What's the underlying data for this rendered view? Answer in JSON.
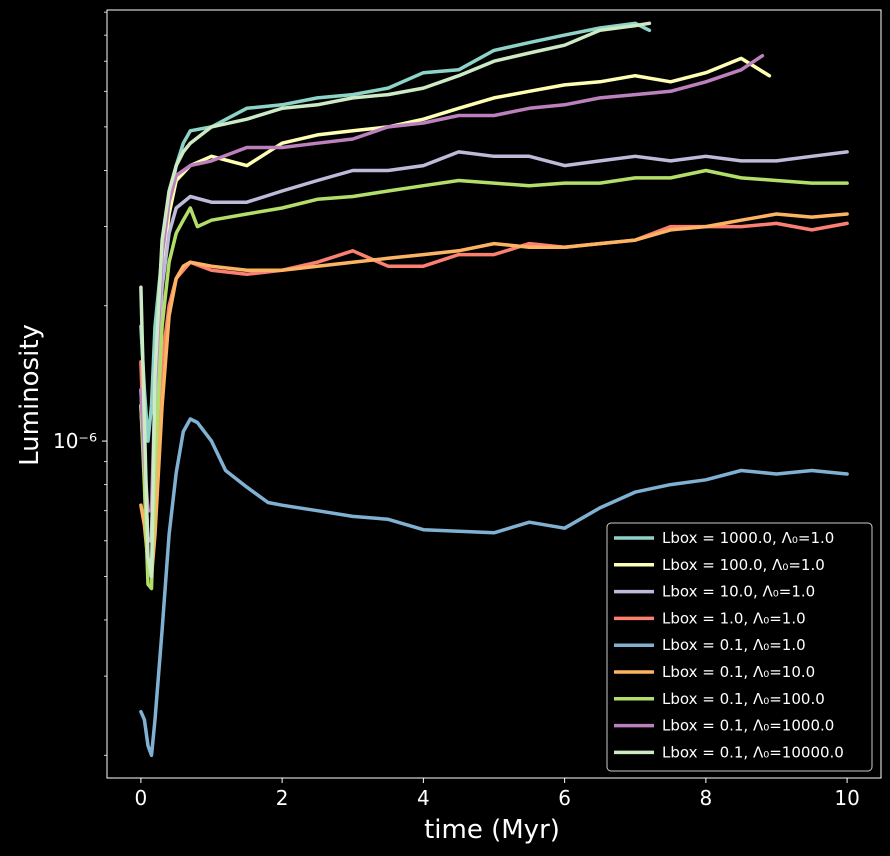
{
  "chart_data": {
    "type": "line",
    "xlabel": "time (Myr)",
    "ylabel": "Luminosity",
    "xlim": [
      -0.48,
      10.48
    ],
    "ylim": [
      1.78e-07,
      9.1e-06
    ],
    "yscale": "log",
    "xticks": [
      0,
      2,
      4,
      6,
      8,
      10
    ],
    "xtick_labels": [
      "0",
      "2",
      "4",
      "6",
      "8",
      "10"
    ],
    "yticks": [
      1e-06
    ],
    "ytick_labels": [
      "10⁻⁶"
    ],
    "grid": false,
    "legend": "lower-right",
    "series": [
      {
        "name": "Lbox = 1000.0, Λ₀=1.0",
        "color": "#8dd3c7",
        "x": [
          0,
          0.05,
          0.1,
          0.15,
          0.2,
          0.3,
          0.4,
          0.5,
          0.6,
          0.7,
          1.0,
          1.5,
          2.0,
          2.5,
          3.0,
          3.5,
          4.0,
          4.5,
          5.0,
          5.5,
          6.0,
          6.5,
          7.0,
          7.2
        ],
        "y": [
          1.8e-06,
          1.3e-06,
          1e-06,
          1.2e-06,
          1.8e-06,
          2.6e-06,
          3.4e-06,
          4.1e-06,
          4.6e-06,
          4.9e-06,
          5e-06,
          5.5e-06,
          5.6e-06,
          5.8e-06,
          5.9e-06,
          6.1e-06,
          6.6e-06,
          6.7e-06,
          7.4e-06,
          7.7e-06,
          8e-06,
          8.3e-06,
          8.5e-06,
          8.2e-06
        ]
      },
      {
        "name": "Lbox = 100.0, Λ₀=1.0",
        "color": "#ffffb3",
        "x": [
          0,
          0.05,
          0.1,
          0.15,
          0.2,
          0.3,
          0.4,
          0.5,
          0.7,
          1.0,
          1.5,
          2.0,
          2.5,
          3.0,
          3.5,
          4.0,
          4.5,
          5.0,
          5.5,
          6.0,
          6.5,
          7.0,
          7.5,
          8.0,
          8.5,
          8.9
        ],
        "y": [
          1.2e-06,
          8.5e-07,
          6e-07,
          6e-07,
          1.2e-06,
          2.4e-06,
          3.2e-06,
          3.8e-06,
          4.1e-06,
          4.3e-06,
          4.1e-06,
          4.6e-06,
          4.8e-06,
          4.9e-06,
          5e-06,
          5.2e-06,
          5.5e-06,
          5.8e-06,
          6e-06,
          6.2e-06,
          6.3e-06,
          6.5e-06,
          6.3e-06,
          6.6e-06,
          7.1e-06,
          6.5e-06
        ]
      },
      {
        "name": "Lbox = 10.0, Λ₀=1.0",
        "color": "#bebada",
        "x": [
          0,
          0.05,
          0.1,
          0.15,
          0.2,
          0.3,
          0.4,
          0.5,
          0.7,
          1.0,
          1.5,
          2.0,
          2.5,
          3.0,
          3.5,
          4.0,
          4.5,
          5.0,
          5.5,
          6.0,
          6.5,
          7.0,
          7.5,
          8.0,
          8.5,
          9.0,
          9.5,
          10.0
        ],
        "y": [
          1.3e-06,
          9e-07,
          6e-07,
          6e-07,
          1.1e-06,
          2.2e-06,
          2.9e-06,
          3.3e-06,
          3.5e-06,
          3.4e-06,
          3.4e-06,
          3.6e-06,
          3.8e-06,
          4e-06,
          4e-06,
          4.1e-06,
          4.4e-06,
          4.3e-06,
          4.3e-06,
          4.1e-06,
          4.2e-06,
          4.3e-06,
          4.2e-06,
          4.3e-06,
          4.2e-06,
          4.2e-06,
          4.3e-06,
          4.4e-06
        ]
      },
      {
        "name": "Lbox = 1.0, Λ₀=1.0",
        "color": "#fb8072",
        "x": [
          0,
          0.05,
          0.1,
          0.15,
          0.2,
          0.3,
          0.4,
          0.5,
          0.6,
          0.7,
          1.0,
          1.5,
          2.0,
          2.5,
          3.0,
          3.5,
          4.0,
          4.5,
          5.0,
          5.5,
          6.0,
          6.5,
          7.0,
          7.5,
          8.0,
          8.5,
          9.0,
          9.5,
          10.0
        ],
        "y": [
          1.5e-06,
          9e-07,
          5.5e-07,
          5e-07,
          8.5e-07,
          1.5e-06,
          2e-06,
          2.3e-06,
          2.4e-06,
          2.5e-06,
          2.4e-06,
          2.35e-06,
          2.4e-06,
          2.5e-06,
          2.65e-06,
          2.45e-06,
          2.45e-06,
          2.6e-06,
          2.6e-06,
          2.75e-06,
          2.7e-06,
          2.75e-06,
          2.8e-06,
          3e-06,
          3e-06,
          3e-06,
          3.05e-06,
          2.95e-06,
          3.05e-06
        ]
      },
      {
        "name": "Lbox = 0.1, Λ₀=1.0",
        "color": "#80b1d3",
        "x": [
          0,
          0.05,
          0.1,
          0.15,
          0.2,
          0.3,
          0.4,
          0.5,
          0.6,
          0.7,
          0.8,
          1.0,
          1.2,
          1.5,
          1.8,
          2.0,
          2.5,
          3.0,
          3.5,
          4.0,
          4.5,
          5.0,
          5.5,
          6.0,
          6.5,
          7.0,
          7.5,
          8.0,
          8.5,
          9.0,
          9.5,
          10.0
        ],
        "y": [
          2.5e-07,
          2.4e-07,
          2.1e-07,
          2e-07,
          2.4e-07,
          3.8e-07,
          6.2e-07,
          8.5e-07,
          1.05e-06,
          1.12e-06,
          1.1e-06,
          1e-06,
          8.6e-07,
          7.9e-07,
          7.3e-07,
          7.2e-07,
          7e-07,
          6.8e-07,
          6.7e-07,
          6.35e-07,
          6.3e-07,
          6.25e-07,
          6.6e-07,
          6.4e-07,
          7.1e-07,
          7.7e-07,
          8e-07,
          8.2e-07,
          8.6e-07,
          8.45e-07,
          8.6e-07,
          8.45e-07
        ]
      },
      {
        "name": "Lbox = 0.1, Λ₀=10.0",
        "color": "#fdb462",
        "x": [
          0,
          0.05,
          0.1,
          0.15,
          0.2,
          0.3,
          0.4,
          0.5,
          0.6,
          0.7,
          1.0,
          1.5,
          2.0,
          2.5,
          3.0,
          3.5,
          4.0,
          4.5,
          5.0,
          5.5,
          6.0,
          6.5,
          7.0,
          7.5,
          8.0,
          8.5,
          9.0,
          9.5,
          10.0
        ],
        "y": [
          7.2e-07,
          6.5e-07,
          5.4e-07,
          5e-07,
          6.2e-07,
          1.2e-06,
          1.9e-06,
          2.3e-06,
          2.45e-06,
          2.5e-06,
          2.45e-06,
          2.4e-06,
          2.4e-06,
          2.45e-06,
          2.5e-06,
          2.55e-06,
          2.6e-06,
          2.65e-06,
          2.75e-06,
          2.7e-06,
          2.7e-06,
          2.75e-06,
          2.8e-06,
          2.95e-06,
          3e-06,
          3.1e-06,
          3.2e-06,
          3.15e-06,
          3.2e-06
        ]
      },
      {
        "name": "Lbox = 0.1, Λ₀=100.0",
        "color": "#b3de69",
        "x": [
          0,
          0.05,
          0.1,
          0.15,
          0.2,
          0.3,
          0.4,
          0.5,
          0.6,
          0.7,
          0.8,
          1.0,
          1.5,
          2.0,
          2.5,
          3.0,
          3.5,
          4.0,
          4.5,
          5.0,
          5.5,
          6.0,
          6.5,
          7.0,
          7.5,
          8.0,
          8.5,
          9.0,
          9.5,
          10.0
        ],
        "y": [
          1.2e-06,
          8e-07,
          4.8e-07,
          4.7e-07,
          8.5e-07,
          1.8e-06,
          2.5e-06,
          2.9e-06,
          3.1e-06,
          3.3e-06,
          3e-06,
          3.1e-06,
          3.2e-06,
          3.3e-06,
          3.45e-06,
          3.5e-06,
          3.6e-06,
          3.7e-06,
          3.8e-06,
          3.75e-06,
          3.7e-06,
          3.75e-06,
          3.75e-06,
          3.85e-06,
          3.85e-06,
          4e-06,
          3.85e-06,
          3.8e-06,
          3.75e-06,
          3.75e-06
        ]
      },
      {
        "name": "Lbox = 0.1, Λ₀=1000.0",
        "color": "#bc80bd",
        "x": [
          0,
          0.05,
          0.1,
          0.15,
          0.2,
          0.3,
          0.4,
          0.5,
          0.7,
          1.0,
          1.5,
          2.0,
          2.5,
          3.0,
          3.5,
          4.0,
          4.5,
          5.0,
          5.5,
          6.0,
          6.5,
          7.0,
          7.5,
          8.0,
          8.5,
          8.8
        ],
        "y": [
          1.3e-06,
          9e-07,
          7e-07,
          7e-07,
          1.3e-06,
          2.6e-06,
          3.4e-06,
          3.9e-06,
          4.1e-06,
          4.2e-06,
          4.5e-06,
          4.5e-06,
          4.6e-06,
          4.7e-06,
          5e-06,
          5.1e-06,
          5.3e-06,
          5.3e-06,
          5.5e-06,
          5.6e-06,
          5.8e-06,
          5.9e-06,
          6e-06,
          6.3e-06,
          6.7e-06,
          7.2e-06
        ]
      },
      {
        "name": "Lbox = 0.1, Λ₀=10000.0",
        "color": "#ccebc5",
        "x": [
          0,
          0.05,
          0.1,
          0.15,
          0.2,
          0.3,
          0.4,
          0.5,
          0.6,
          0.7,
          1.0,
          1.5,
          2.0,
          2.5,
          3.0,
          3.5,
          4.0,
          4.5,
          5.0,
          5.5,
          6.0,
          6.5,
          7.0,
          7.2
        ],
        "y": [
          2.2e-06,
          1.1e-06,
          5.5e-07,
          5e-07,
          1.4e-06,
          2.8e-06,
          3.6e-06,
          4.1e-06,
          4.4e-06,
          4.6e-06,
          5e-06,
          5.2e-06,
          5.5e-06,
          5.6e-06,
          5.8e-06,
          5.9e-06,
          6.1e-06,
          6.5e-06,
          7e-06,
          7.3e-06,
          7.6e-06,
          8.2e-06,
          8.4e-06,
          8.5e-06
        ]
      }
    ]
  }
}
